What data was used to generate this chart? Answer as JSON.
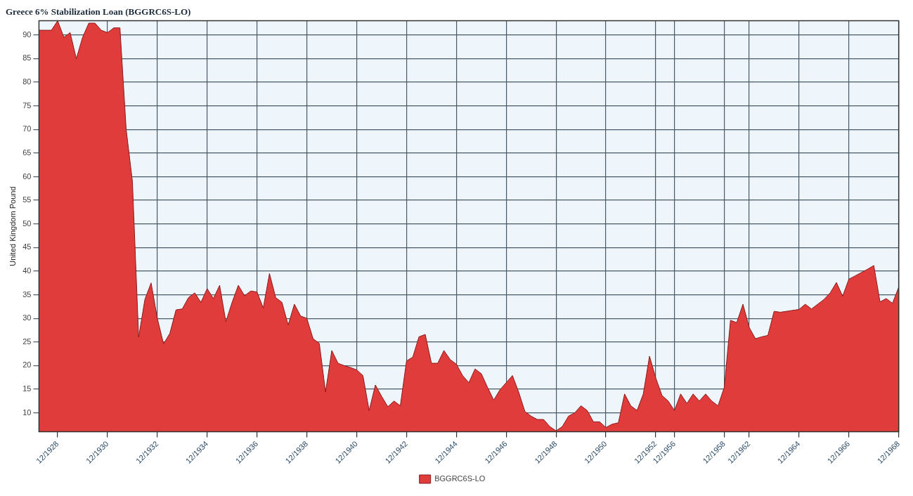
{
  "chart_data": {
    "type": "area",
    "title": "Greece 6% Stabilization Loan (BGGRC6S-LO)",
    "ylabel": "United Kingdom Pound",
    "categories": [
      null,
      null,
      null,
      "12/1928",
      null,
      null,
      null,
      null,
      null,
      null,
      null,
      "12/1930",
      null,
      null,
      null,
      null,
      null,
      null,
      null,
      "12/1932",
      null,
      null,
      null,
      null,
      null,
      null,
      null,
      "12/1934",
      null,
      null,
      null,
      null,
      null,
      null,
      null,
      "12/1936",
      null,
      null,
      null,
      null,
      null,
      null,
      null,
      "12/1938",
      null,
      null,
      null,
      null,
      null,
      null,
      null,
      "12/1940",
      null,
      null,
      null,
      null,
      null,
      null,
      null,
      "12/1942",
      null,
      null,
      null,
      null,
      null,
      null,
      null,
      "12/1944",
      null,
      null,
      null,
      null,
      null,
      null,
      null,
      "12/1946",
      null,
      null,
      null,
      null,
      null,
      null,
      null,
      "12/1948",
      null,
      null,
      null,
      null,
      null,
      null,
      null,
      "12/1950",
      null,
      null,
      null,
      null,
      null,
      null,
      null,
      "12/1952",
      null,
      null,
      "12/1956",
      null,
      null,
      null,
      null,
      null,
      null,
      null,
      "12/1958",
      null,
      null,
      null,
      "12/1962",
      null,
      null,
      null,
      null,
      null,
      null,
      null,
      "12/1964",
      null,
      null,
      null,
      null,
      null,
      null,
      null,
      "12/1966",
      null,
      null,
      null,
      null,
      null,
      null,
      null,
      "12/1968"
    ],
    "series": [
      {
        "name": "BGGRC6S-LO",
        "color": "#e03c3c",
        "values": [
          91,
          91,
          91,
          93,
          89.5,
          90.5,
          85,
          89.5,
          92.5,
          92.5,
          91,
          90.5,
          91.5,
          91.5,
          70,
          59,
          26,
          34,
          37.5,
          30,
          24.6,
          26.8,
          31.8,
          32,
          34.4,
          35.4,
          33.4,
          36.3,
          34.2,
          37,
          29.3,
          33.4,
          37,
          34.8,
          35.8,
          35.6,
          32.2,
          39.5,
          34.4,
          33.4,
          28.6,
          33,
          30.5,
          30,
          25.7,
          24.7,
          14.4,
          23.2,
          20.5,
          20,
          19.6,
          19.1,
          17.9,
          10.5,
          15.9,
          13.5,
          11.3,
          12.5,
          11.5,
          21,
          21.8,
          26.1,
          26.6,
          20.5,
          20.5,
          23.2,
          21.3,
          20.3,
          17.9,
          16.4,
          19.3,
          18.3,
          15.4,
          12.7,
          14.9,
          16.4,
          17.9,
          14.4,
          10.3,
          9.3,
          8.6,
          8.6,
          7.1,
          6.2,
          7.1,
          9.3,
          10,
          11.5,
          10.5,
          8.1,
          8.1,
          6.9,
          7.6,
          7.9,
          14,
          11.5,
          10.5,
          14,
          22,
          17.4,
          13.7,
          12.5,
          10.5,
          14,
          12,
          14,
          12.5,
          14,
          12.5,
          11.5,
          15.4,
          29.6,
          29.1,
          33,
          28.1,
          25.7,
          26.1,
          26.4,
          31.5,
          31.3,
          31.5,
          31.7,
          31.9,
          33,
          32,
          33,
          34,
          35.4,
          37.6,
          34.7,
          38.3,
          39,
          39.7,
          40.4,
          41.2,
          33.5,
          34.2,
          33.2,
          36.6
        ]
      }
    ],
    "ylim": [
      6,
      93
    ],
    "yticks": [
      10,
      15,
      20,
      25,
      30,
      35,
      40,
      45,
      50,
      55,
      60,
      65,
      70,
      75,
      80,
      85,
      90
    ],
    "grid": true,
    "legend": "bottom"
  }
}
